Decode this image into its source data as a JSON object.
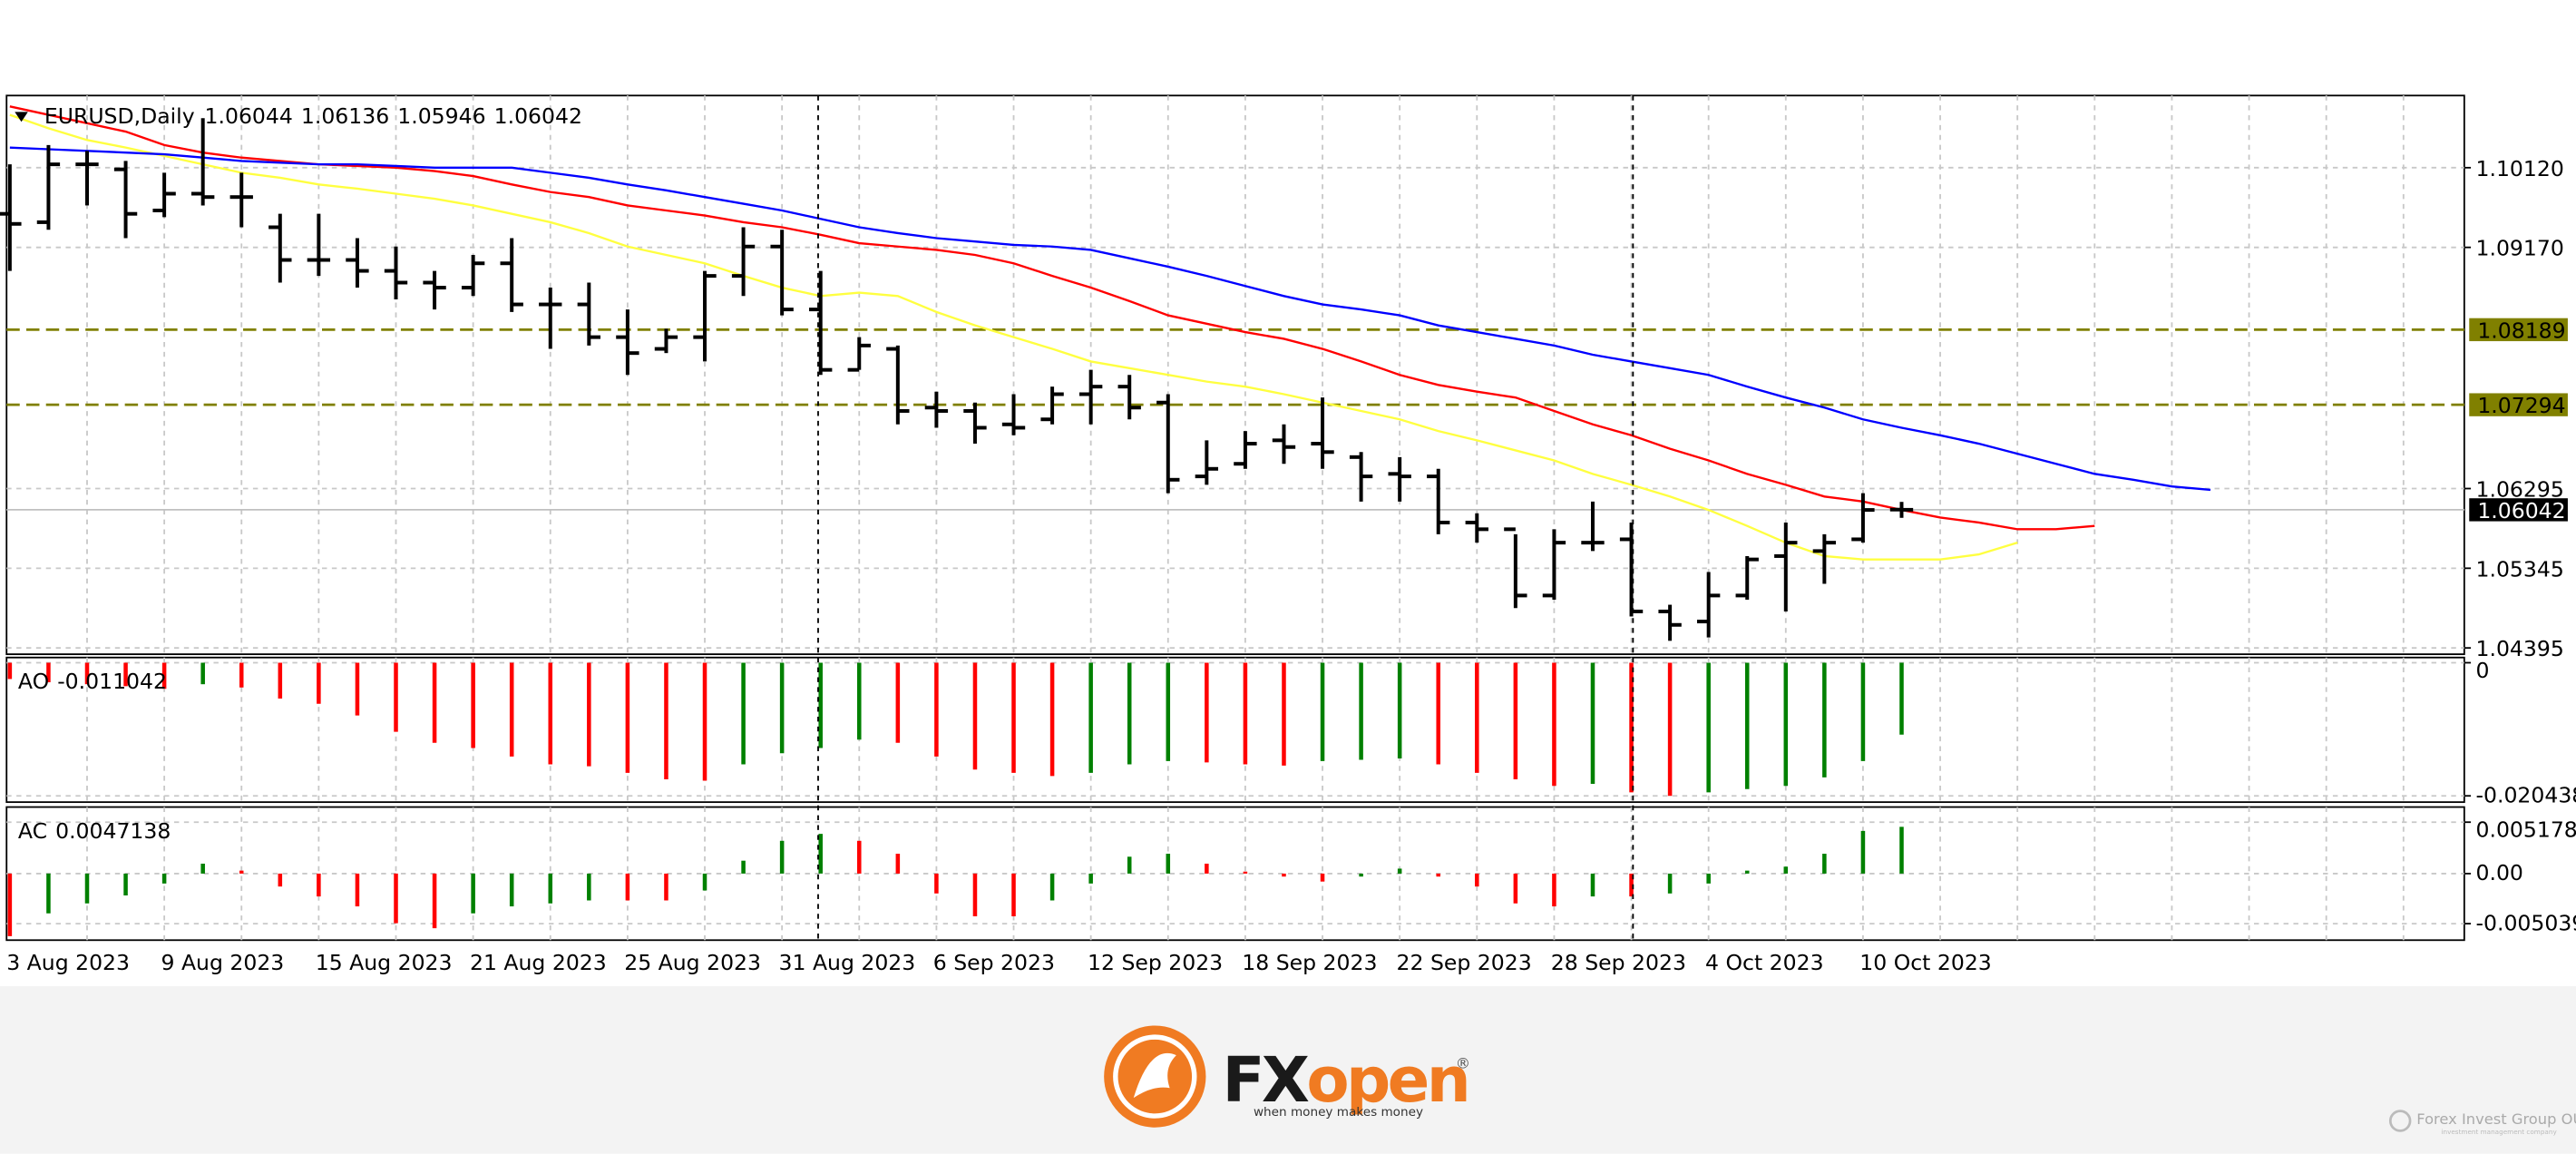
{
  "chart_data": [
    {
      "type": "ohlc",
      "symbol": "EURUSD,Daily",
      "categories": [
        "3 Aug 2023",
        null,
        null,
        null,
        "9 Aug 2023",
        null,
        null,
        null,
        "15 Aug 2023",
        null,
        null,
        null,
        "21 Aug 2023",
        null,
        null,
        null,
        "25 Aug 2023",
        null,
        null,
        null,
        "31 Aug 2023",
        null,
        null,
        null,
        "6 Sep 2023",
        null,
        null,
        null,
        "12 Sep 2023",
        null,
        null,
        null,
        "18 Sep 2023",
        null,
        null,
        null,
        "22 Sep 2023",
        null,
        null,
        null,
        "28 Sep 2023",
        null,
        null,
        null,
        "4 Oct 2023",
        null,
        null,
        null,
        "10 Oct 2023",
        null,
        null,
        null,
        null,
        null,
        null,
        null,
        null,
        null
      ],
      "open": [
        1.0957,
        1.0947,
        1.1016,
        1.101,
        1.0961,
        1.0981,
        1.0977,
        1.0941,
        1.0902,
        1.0902,
        1.0889,
        1.0875,
        1.0869,
        1.0898,
        1.0849,
        1.0849,
        1.081,
        1.0796,
        1.081,
        1.0883,
        1.0918,
        1.0843,
        1.0771,
        1.0796,
        1.0726,
        1.0722,
        1.0706,
        1.0712,
        1.0742,
        1.0751,
        1.0732,
        1.0644,
        1.0659,
        1.0687,
        1.0683,
        1.0667,
        1.0647,
        1.0644,
        1.0589,
        1.0581,
        1.0502,
        1.0565,
        1.0569,
        1.0483,
        1.0471,
        1.0502,
        1.0549,
        1.0555,
        1.0569,
        1.06044,
        null,
        null,
        null,
        null,
        null,
        null,
        null,
        null
      ],
      "high": [
        1.1016,
        1.1039,
        1.1032,
        1.102,
        1.1006,
        1.1071,
        1.1006,
        1.0957,
        1.0957,
        1.0928,
        1.0918,
        1.0889,
        1.0908,
        1.0928,
        1.0869,
        1.0875,
        1.0843,
        1.082,
        1.0889,
        1.0941,
        1.0938,
        1.0889,
        1.081,
        1.08,
        1.0745,
        1.0732,
        1.0742,
        1.0751,
        1.0771,
        1.0765,
        1.0742,
        1.0687,
        1.0698,
        1.0706,
        1.0738,
        1.0673,
        1.0667,
        1.0653,
        1.06,
        1.0575,
        1.0581,
        1.0614,
        1.0589,
        1.0491,
        1.053,
        1.0549,
        1.0589,
        1.0575,
        1.0624,
        1.06136,
        null,
        null,
        null,
        null,
        null,
        null,
        null,
        null
      ],
      "low": [
        1.0889,
        1.0938,
        1.0967,
        1.0928,
        1.0953,
        1.0967,
        1.0941,
        1.0875,
        1.0883,
        1.0869,
        1.0855,
        1.0843,
        1.0859,
        1.084,
        1.0796,
        1.08,
        1.0765,
        1.0791,
        1.0781,
        1.0859,
        1.0836,
        1.0765,
        1.0771,
        1.0706,
        1.0702,
        1.0683,
        1.0693,
        1.0706,
        1.0706,
        1.0712,
        1.0624,
        1.0634,
        1.0653,
        1.0659,
        1.0653,
        1.0614,
        1.0614,
        1.0575,
        1.0565,
        1.0487,
        1.0497,
        1.0555,
        1.0477,
        1.0448,
        1.0452,
        1.0497,
        1.0483,
        1.0516,
        1.0565,
        1.05946,
        null,
        null,
        null,
        null,
        null,
        null,
        null,
        null
      ],
      "close": [
        1.0945,
        1.1016,
        1.1016,
        1.0957,
        1.0981,
        1.0977,
        1.0977,
        1.0902,
        1.0902,
        1.0889,
        1.0875,
        1.0869,
        1.0898,
        1.0849,
        1.0849,
        1.081,
        1.0791,
        1.081,
        1.0883,
        1.0918,
        1.0843,
        1.0771,
        1.08,
        1.0722,
        1.0722,
        1.0702,
        1.0702,
        1.0742,
        1.0751,
        1.0726,
        1.064,
        1.0653,
        1.0683,
        1.0679,
        1.0673,
        1.0644,
        1.0644,
        1.0589,
        1.0581,
        1.0502,
        1.0565,
        1.0565,
        1.0483,
        1.0467,
        1.0502,
        1.0545,
        1.0565,
        1.0565,
        1.0604,
        1.06042,
        null,
        null,
        null,
        null,
        null,
        null,
        null,
        null
      ],
      "bar_color": "#000000",
      "series": [
        {
          "color": "#ffff40",
          "values": [
            1.1075,
            1.1059,
            1.1045,
            1.1036,
            1.1026,
            1.1016,
            1.1006,
            1.1,
            1.0992,
            1.0987,
            1.0981,
            1.0975,
            1.0967,
            1.0957,
            1.0947,
            1.0934,
            1.0918,
            1.0908,
            1.0898,
            1.0883,
            1.0869,
            1.0859,
            1.0863,
            1.0859,
            1.084,
            1.0824,
            1.081,
            1.0796,
            1.0781,
            1.0773,
            1.0765,
            1.0757,
            1.0751,
            1.0742,
            1.0732,
            1.0722,
            1.0712,
            1.0698,
            1.0687,
            1.0675,
            1.0663,
            1.0647,
            1.0634,
            1.062,
            1.0604,
            1.0585,
            1.0565,
            1.0549,
            1.0545,
            1.0545,
            1.0545,
            1.0551,
            1.0565,
            null,
            null,
            null,
            null,
            null
          ]
        },
        {
          "color": "#ff0000",
          "values": [
            1.1085,
            1.1075,
            1.1065,
            1.1055,
            1.1039,
            1.103,
            1.1024,
            1.102,
            1.1016,
            1.1014,
            1.1012,
            1.1008,
            1.1002,
            1.0992,
            1.0983,
            1.0977,
            1.0967,
            1.0961,
            1.0955,
            1.0947,
            1.0941,
            1.0932,
            1.0922,
            1.0918,
            1.0914,
            1.0908,
            1.0898,
            1.0883,
            1.0869,
            1.0853,
            1.0836,
            1.0826,
            1.0816,
            1.0808,
            1.0796,
            1.0781,
            1.0765,
            1.0753,
            1.0745,
            1.0738,
            1.0722,
            1.0706,
            1.0693,
            1.0677,
            1.0663,
            1.0647,
            1.0634,
            1.062,
            1.0614,
            1.0604,
            1.0595,
            1.0589,
            1.0581,
            1.0581,
            1.0585,
            null,
            null,
            null
          ]
        },
        {
          "color": "#0000ff",
          "values": [
            1.1036,
            1.1034,
            1.1032,
            1.103,
            1.1028,
            1.1024,
            1.102,
            1.1018,
            1.1016,
            1.1016,
            1.1014,
            1.1012,
            1.1012,
            1.1012,
            1.1006,
            1.1,
            1.0992,
            1.0985,
            1.0977,
            1.0969,
            1.0961,
            1.0951,
            1.0941,
            1.0934,
            1.0928,
            1.0924,
            1.092,
            1.0918,
            1.0914,
            1.0904,
            1.0894,
            1.0883,
            1.0871,
            1.0859,
            1.0849,
            1.0843,
            1.0836,
            1.0824,
            1.0816,
            1.0808,
            1.08,
            1.0789,
            1.0781,
            1.0773,
            1.0765,
            1.0751,
            1.0738,
            1.0726,
            1.0712,
            1.0702,
            1.0693,
            1.0683,
            1.0671,
            1.0659,
            1.0647,
            1.064,
            1.0632,
            1.0628
          ]
        }
      ],
      "levels": [
        {
          "value": 1.08189,
          "color": "#808000"
        },
        {
          "value": 1.07294,
          "color": "#808000"
        }
      ],
      "ylim": [
        1.0432,
        1.1098
      ],
      "yticks": [
        1.04395,
        1.05345,
        1.06295,
        {
          "value": 1.0917,
          "label": "1.09170"
        },
        {
          "value": 1.1012,
          "label": "1.10120"
        }
      ],
      "grid": true
    },
    {
      "type": "bar",
      "name": "AO",
      "values": [
        -0.0025,
        -0.003,
        -0.0033,
        -0.0036,
        -0.004,
        -0.0033,
        -0.0038,
        -0.0055,
        -0.0063,
        -0.0081,
        -0.0106,
        -0.0123,
        -0.0131,
        -0.0144,
        -0.0156,
        -0.0159,
        -0.0169,
        -0.0179,
        -0.0181,
        -0.0156,
        -0.0139,
        -0.0131,
        -0.0118,
        -0.0123,
        -0.0144,
        -0.0164,
        -0.0169,
        -0.0174,
        -0.0169,
        -0.0156,
        -0.0151,
        -0.0153,
        -0.0156,
        -0.0158,
        -0.0151,
        -0.0149,
        -0.0147,
        -0.0156,
        -0.0169,
        -0.0179,
        -0.0189,
        -0.0186,
        -0.0199,
        -0.020438,
        -0.0199,
        -0.0194,
        -0.0189,
        -0.0176,
        -0.0151,
        -0.011042
      ],
      "up_color": "#008000",
      "down_color": "#ff0000",
      "ylim": [
        -0.0214,
        0.0008
      ],
      "yticks": [
        -0.020438,
        0
      ],
      "grid": true
    },
    {
      "type": "bar",
      "name": "AC",
      "values": [
        -0.0063,
        -0.004,
        -0.003,
        -0.0022,
        -0.001,
        0.001,
        0.0003,
        -0.0013,
        -0.0023,
        -0.0033,
        -0.005,
        -0.0055,
        -0.004,
        -0.0033,
        -0.003,
        -0.0027,
        -0.0027,
        -0.0027,
        -0.0017,
        0.0013,
        0.0033,
        0.004,
        0.0033,
        0.002,
        -0.002,
        -0.0043,
        -0.0043,
        -0.0027,
        -0.001,
        0.0017,
        0.002,
        0.001,
        0.0002,
        -0.0003,
        -0.0008,
        -0.0003,
        0.0005,
        -0.0003,
        -0.0013,
        -0.003,
        -0.0033,
        -0.0023,
        -0.0023,
        -0.002,
        -0.001,
        0.0003,
        0.0007,
        0.002,
        0.0043,
        0.0047138
      ],
      "up_color": "#008000",
      "down_color": "#ff0000",
      "ylim": [
        -0.0067,
        0.0067
      ],
      "yticks": [
        -0.005039,
        {
          "value": 0,
          "label": "0.00"
        },
        0.005178
      ],
      "grid": true
    }
  ],
  "footer": {
    "brand_fx": "FX",
    "brand_open": "open",
    "registered": "®",
    "tagline": "when money makes money",
    "watermark": "Forex Invest Group OU",
    "watermark_sub": "investment management company"
  }
}
